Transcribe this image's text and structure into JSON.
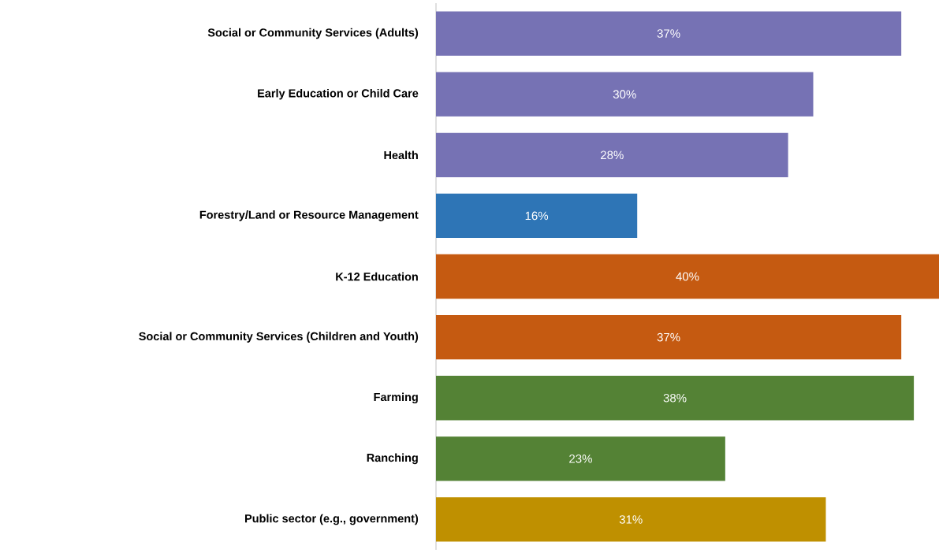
{
  "chart_data": {
    "type": "bar",
    "orientation": "horizontal",
    "categories": [
      "Social or Community Services (Adults)",
      "Early Education or Child Care",
      "Health",
      "Forestry/Land or Resource Management",
      "K-12 Education",
      "Social or Community Services (Children and Youth)",
      "Farming",
      "Ranching",
      "Public sector (e.g., government)"
    ],
    "values": [
      37,
      30,
      28,
      16,
      40,
      37,
      38,
      23,
      31
    ],
    "value_labels": [
      "37%",
      "30%",
      "28%",
      "16%",
      "40%",
      "37%",
      "38%",
      "23%",
      "31%"
    ],
    "colors": [
      "#7672b4",
      "#7672b4",
      "#7672b4",
      "#2e75b6",
      "#c55a11",
      "#c55a11",
      "#548235",
      "#548235",
      "#bf9000"
    ]
  }
}
